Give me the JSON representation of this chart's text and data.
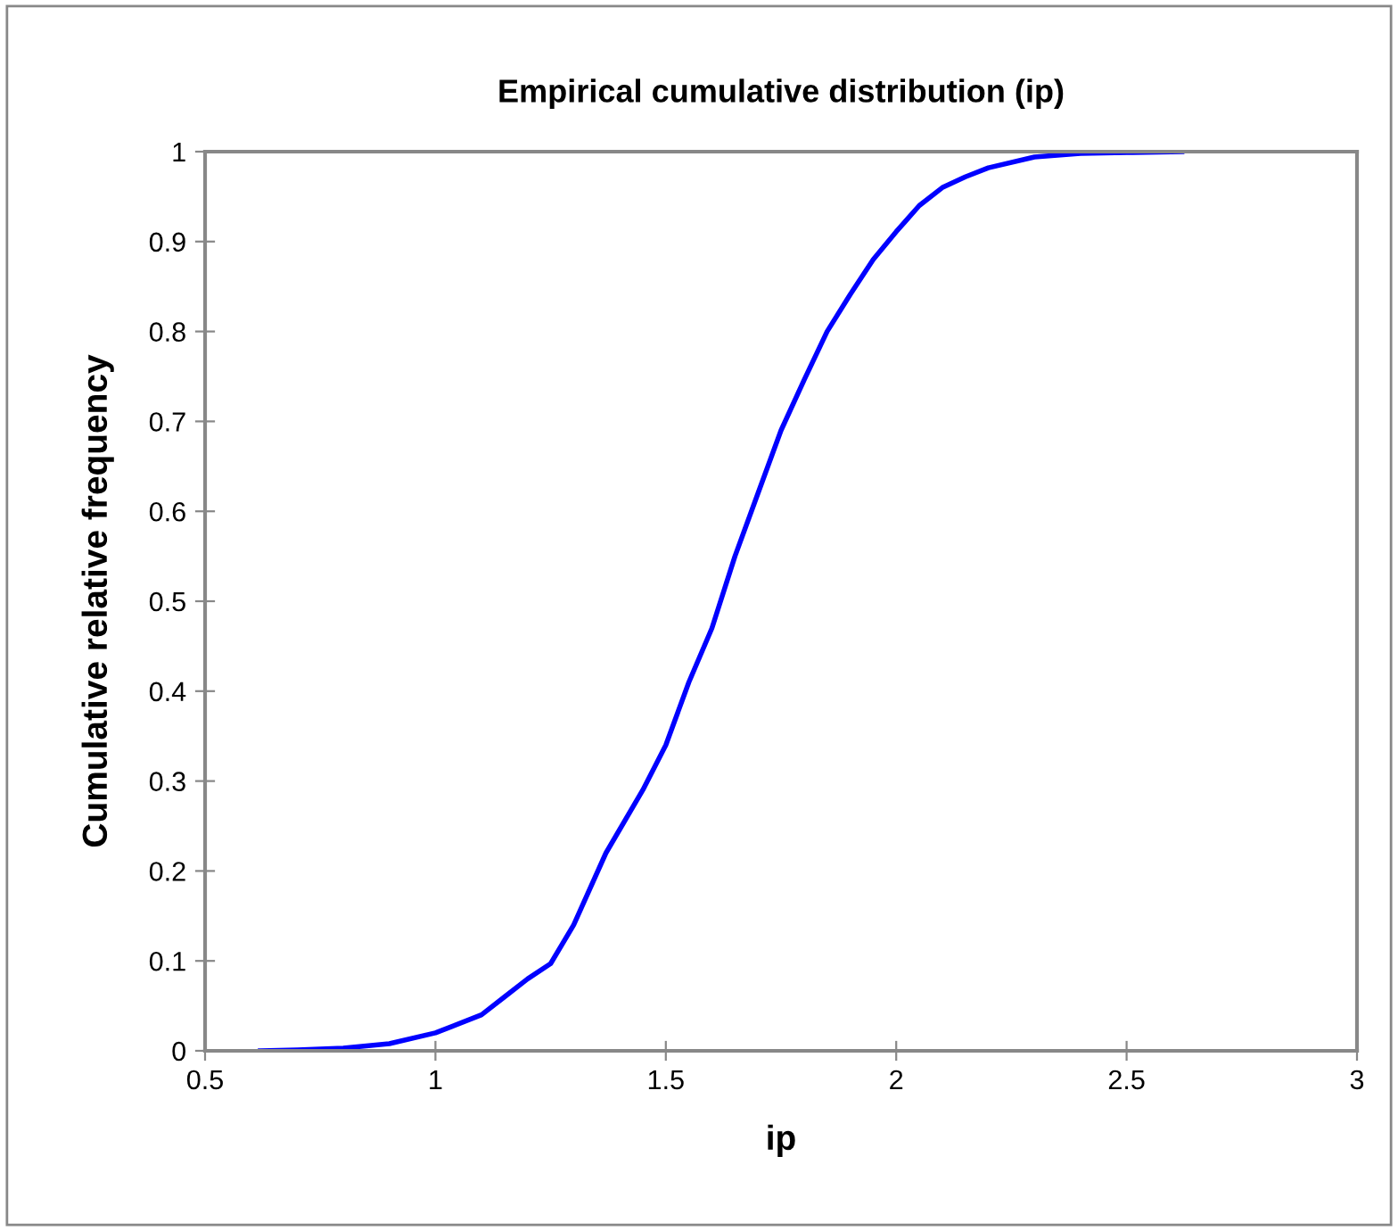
{
  "chart_data": {
    "type": "line",
    "title": "Empirical cumulative distribution (ip)",
    "xlabel": "ip",
    "ylabel": "Cumulative relative frequency",
    "series": [
      {
        "color": "#0000ff",
        "x": [
          0.62,
          0.7,
          0.8,
          0.9,
          1.0,
          1.1,
          1.15,
          1.2,
          1.25,
          1.3,
          1.37,
          1.45,
          1.5,
          1.55,
          1.6,
          1.65,
          1.7,
          1.75,
          1.8,
          1.85,
          1.9,
          1.95,
          2.0,
          2.05,
          2.1,
          2.15,
          2.2,
          2.3,
          2.4,
          2.5,
          2.62
        ],
        "values": [
          0,
          0.001,
          0.003,
          0.008,
          0.02,
          0.04,
          0.06,
          0.08,
          0.097,
          0.14,
          0.22,
          0.29,
          0.34,
          0.41,
          0.47,
          0.55,
          0.62,
          0.69,
          0.746,
          0.8,
          0.841,
          0.88,
          0.911,
          0.94,
          0.96,
          0.972,
          0.982,
          0.994,
          0.998,
          0.999,
          1.0
        ]
      }
    ],
    "xlim": [
      0.5,
      3
    ],
    "xticks": [
      0.5,
      1,
      1.5,
      2,
      2.5,
      3
    ],
    "ylim": [
      0,
      1
    ],
    "yticks": [
      0,
      0.1,
      0.2,
      0.3,
      0.4,
      0.5,
      0.6,
      0.7,
      0.8,
      0.9,
      1
    ],
    "grid": false,
    "line_style": "solid",
    "marker": "none"
  }
}
